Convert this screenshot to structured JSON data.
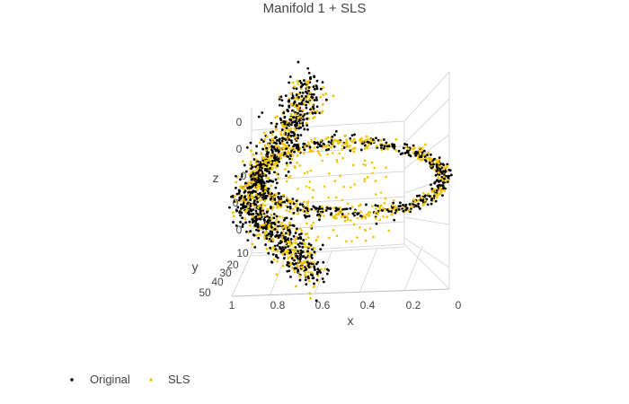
{
  "chart_data": {
    "type": "scatter",
    "title": "Manifold 1 + SLS",
    "axes": {
      "x": {
        "label": "x",
        "ticks": [
          "1",
          "0.8",
          "0.6",
          "0.4",
          "0.2",
          "0"
        ],
        "range": [
          0,
          1
        ]
      },
      "y": {
        "label": "y",
        "ticks": [
          "10",
          "20",
          "30",
          "40",
          "50"
        ],
        "range": [
          0,
          50
        ]
      },
      "z": {
        "label": "z",
        "ticks": [
          "0",
          "0",
          "0",
          "0",
          "0"
        ]
      }
    },
    "grid": true,
    "legend": {
      "placement": "bottom-left",
      "orientation": "horizontal"
    },
    "series": [
      {
        "name": "Original",
        "color": "#000000",
        "description_points": "dense scatter tracing a twisted looping manifold"
      },
      {
        "name": "SLS",
        "color": "#f2c500",
        "description_points": "scatter overlapping the same manifold with some spread"
      }
    ]
  }
}
